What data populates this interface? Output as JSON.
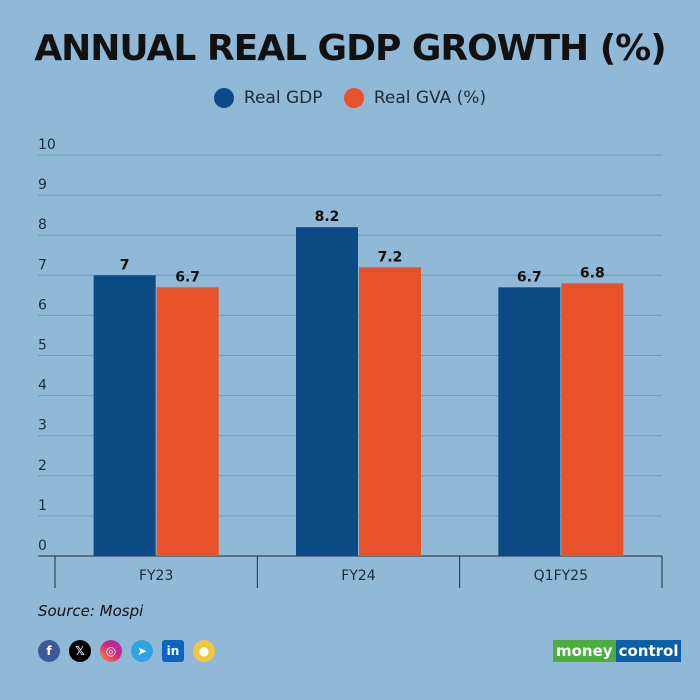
{
  "chart_data": {
    "type": "bar",
    "title": "ANNUAL REAL GDP GROWTH (%)",
    "categories": [
      "FY23",
      "FY24",
      "Q1FY25"
    ],
    "series": [
      {
        "name": "Real GDP",
        "values": [
          7,
          8.2,
          6.7
        ],
        "color": "#0b4a85"
      },
      {
        "name": "Real GVA (%)",
        "values": [
          6.7,
          7.2,
          6.8
        ],
        "color": "#e8522a"
      }
    ],
    "data_labels": [
      [
        "7",
        "8.2",
        "6.7"
      ],
      [
        "6.7",
        "7.2",
        "6.8"
      ]
    ],
    "ylim": [
      0,
      10
    ],
    "yticks": [
      "0",
      "1",
      "2",
      "3",
      "4",
      "5",
      "6",
      "7",
      "8",
      "9",
      "10"
    ],
    "grid": true,
    "legend": "top-center"
  },
  "source": "Source: Mospi",
  "social_icons": [
    "facebook-icon",
    "x-icon",
    "instagram-icon",
    "telegram-icon",
    "linkedin-icon",
    "koo-icon"
  ],
  "logo": {
    "part1": "money",
    "part2": "control"
  }
}
